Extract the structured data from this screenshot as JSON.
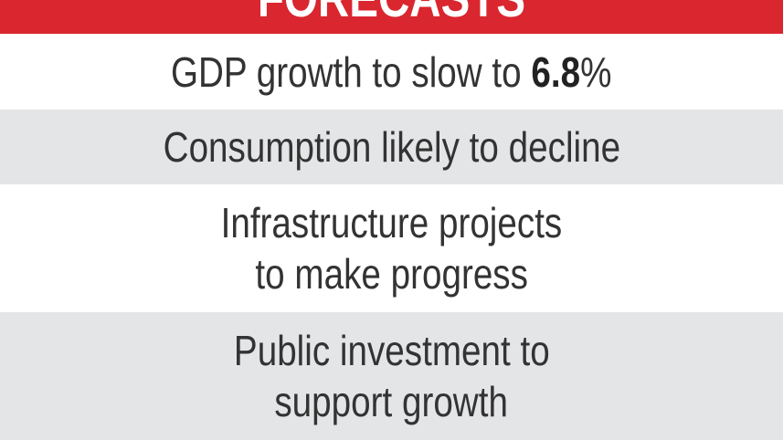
{
  "header": {
    "title": "FORECASTS"
  },
  "items": [
    {
      "lines": [
        {
          "text": "GDP growth to slow to ",
          "highlight": "6.8",
          "suffix": "%"
        }
      ]
    },
    {
      "lines": [
        {
          "text": "Consumption likely to decline"
        }
      ]
    },
    {
      "lines": [
        {
          "text": "Infrastructure projects"
        },
        {
          "text": "to make progress"
        }
      ]
    },
    {
      "lines": [
        {
          "text": "Public investment to"
        },
        {
          "text": "support growth"
        }
      ]
    }
  ]
}
